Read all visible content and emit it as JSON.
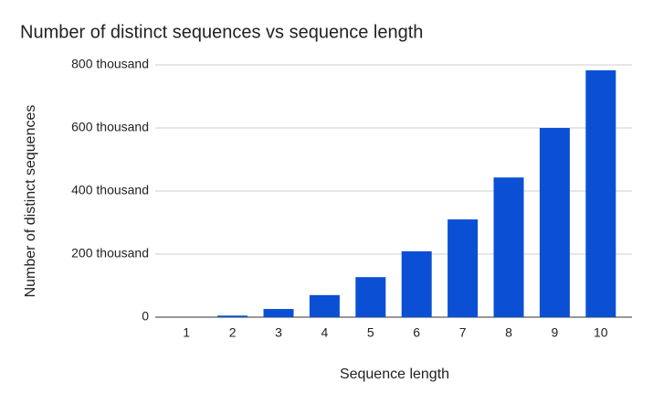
{
  "chart_data": {
    "type": "bar",
    "title": "Number of distinct sequences vs sequence length",
    "x_label": "Sequence length",
    "y_label": "Number of distinct sequences",
    "categories": [
      "1",
      "2",
      "3",
      "4",
      "5",
      "6",
      "7",
      "8",
      "9",
      "10"
    ],
    "values": [
      0,
      5000,
      26000,
      70000,
      127000,
      209000,
      310000,
      443000,
      600000,
      783000
    ],
    "color": "#0b50d4",
    "ylim": [
      0,
      800000
    ],
    "yticks": [
      0,
      {
        "value": 200000,
        "label": "200 thousand"
      },
      {
        "value": 400000,
        "label": "400 thousand"
      },
      {
        "value": 600000,
        "label": "600 thousand"
      },
      {
        "value": 800000,
        "label": "800 thousand"
      }
    ],
    "grid": true
  }
}
